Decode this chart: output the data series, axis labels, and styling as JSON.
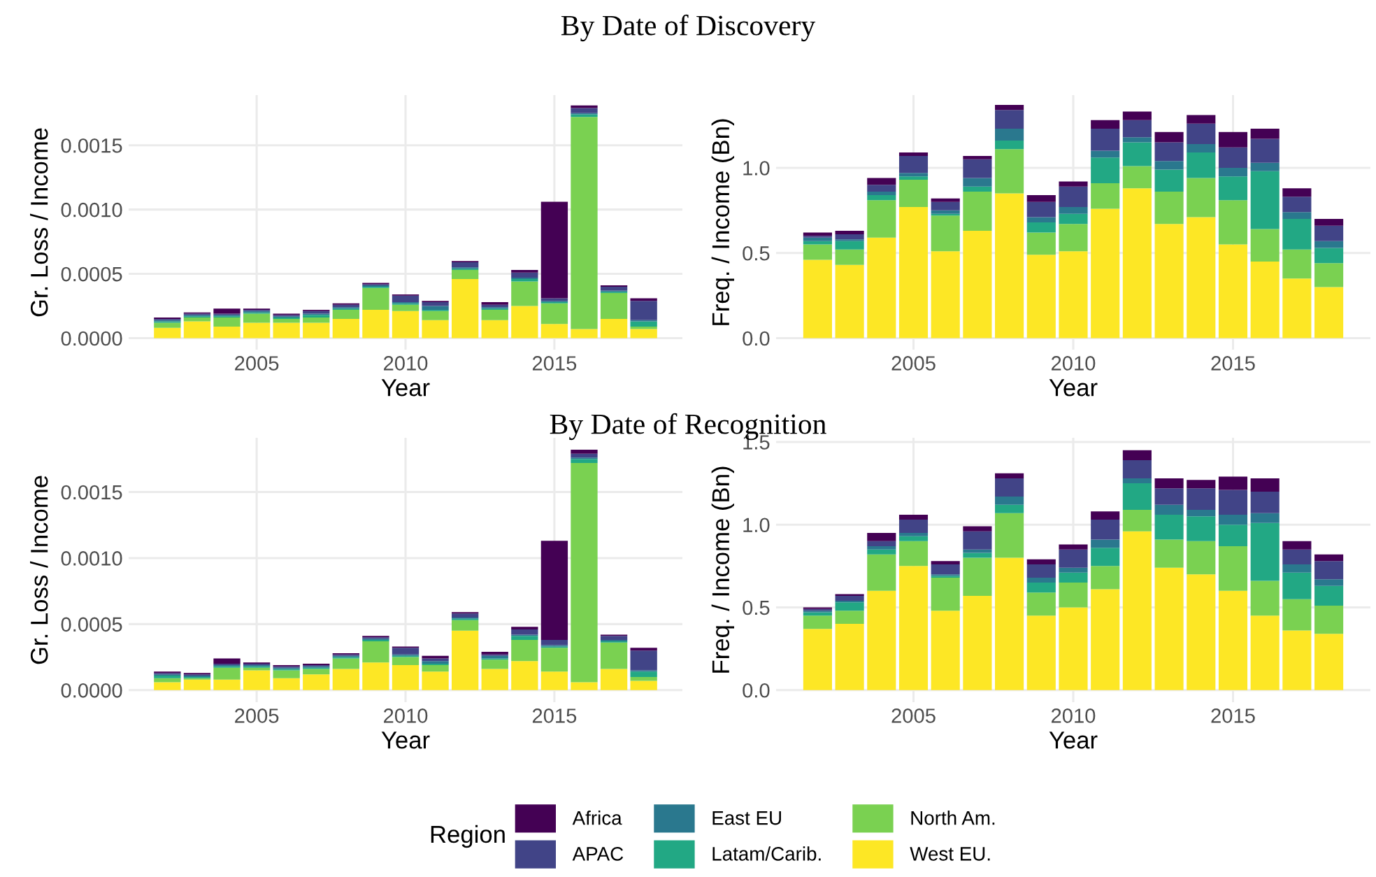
{
  "chart_data": [
    {
      "type": "bar",
      "stacked": true,
      "title": "By Date of Discovery",
      "xlabel": "Year",
      "ylabel": "Gr. Loss / Income",
      "grid": true,
      "legend": "bottom",
      "legend_title": "Region",
      "x": [
        2002,
        2003,
        2004,
        2005,
        2006,
        2007,
        2008,
        2009,
        2010,
        2011,
        2012,
        2013,
        2014,
        2015,
        2016,
        2017,
        2018
      ],
      "xlim": [
        2000.7,
        2019.3
      ],
      "xticks": [
        2005,
        2010,
        2015
      ],
      "ylim": [
        -9e-05,
        0.00189
      ],
      "yticks": [
        {
          "value": 0,
          "label": "0.0000"
        },
        {
          "value": 0.0005,
          "label": "0.0005"
        },
        {
          "value": 0.001,
          "label": "0.0010"
        },
        {
          "value": 0.0015,
          "label": "0.0015"
        }
      ],
      "series": [
        {
          "name": "West EU.",
          "color": "#fde725",
          "values": [
            8e-05,
            0.00013,
            9e-05,
            0.00012,
            0.00012,
            0.00012,
            0.00015,
            0.00022,
            0.00021,
            0.00014,
            0.00046,
            0.00014,
            0.00025,
            0.00011,
            7e-05,
            0.00015,
            7e-05
          ]
        },
        {
          "name": "North Am.",
          "color": "#7ad151",
          "values": [
            4e-05,
            3e-05,
            7e-05,
            7e-05,
            3e-05,
            4e-05,
            7e-05,
            0.00017,
            5e-05,
            7e-05,
            7e-05,
            8e-05,
            0.00019,
            0.00016,
            0.00165,
            0.0002,
            2e-05
          ]
        },
        {
          "name": "Latam/Carib.",
          "color": "#22a884",
          "values": [
            1e-05,
            1e-05,
            1e-05,
            1e-05,
            1e-05,
            2e-05,
            1e-05,
            1e-05,
            1e-05,
            1e-05,
            1e-05,
            1e-05,
            2e-05,
            1e-05,
            2e-05,
            1e-05,
            4e-05
          ]
        },
        {
          "name": "East EU",
          "color": "#2a788e",
          "values": [
            1e-05,
            1e-05,
            1e-05,
            1e-05,
            1e-05,
            1e-05,
            1e-05,
            1e-05,
            1e-05,
            3e-05,
            1e-05,
            1e-05,
            1e-05,
            1e-05,
            1e-05,
            1e-05,
            1e-05
          ]
        },
        {
          "name": "APAC",
          "color": "#414487",
          "values": [
            1e-05,
            1e-05,
            1e-05,
            1e-05,
            1e-05,
            2e-05,
            2e-05,
            1e-05,
            5e-05,
            3e-05,
            4e-05,
            2e-05,
            4e-05,
            2e-05,
            4e-05,
            3e-05,
            0.00015
          ]
        },
        {
          "name": "Africa",
          "color": "#440154",
          "values": [
            1e-05,
            1e-05,
            4e-05,
            1e-05,
            1e-05,
            1e-05,
            1e-05,
            1e-05,
            1e-05,
            1e-05,
            1e-05,
            2e-05,
            2e-05,
            0.00075,
            2e-05,
            1e-05,
            2e-05
          ]
        }
      ]
    },
    {
      "type": "bar",
      "stacked": true,
      "xlabel": "Year",
      "ylabel": "Freq. / Income (Bn)",
      "grid": true,
      "x": [
        2002,
        2003,
        2004,
        2005,
        2006,
        2007,
        2008,
        2009,
        2010,
        2011,
        2012,
        2013,
        2014,
        2015,
        2016,
        2017,
        2018
      ],
      "xlim": [
        2000.7,
        2019.3
      ],
      "xticks": [
        2005,
        2010,
        2015
      ],
      "ylim": [
        -0.068,
        1.427
      ],
      "yticks": [
        {
          "value": 0,
          "label": "0.0"
        },
        {
          "value": 0.5,
          "label": "0.5"
        },
        {
          "value": 1,
          "label": "1.0"
        }
      ],
      "series": [
        {
          "color": "#fde725",
          "values": [
            0.46,
            0.43,
            0.59,
            0.77,
            0.51,
            0.63,
            0.85,
            0.49,
            0.51,
            0.76,
            0.88,
            0.67,
            0.71,
            0.55,
            0.45,
            0.35,
            0.3
          ]
        },
        {
          "color": "#7ad151",
          "values": [
            0.09,
            0.09,
            0.22,
            0.16,
            0.21,
            0.23,
            0.26,
            0.13,
            0.16,
            0.15,
            0.13,
            0.19,
            0.23,
            0.26,
            0.19,
            0.17,
            0.14
          ]
        },
        {
          "color": "#22a884",
          "values": [
            0.02,
            0.05,
            0.03,
            0.02,
            0.01,
            0.03,
            0.05,
            0.06,
            0.06,
            0.15,
            0.14,
            0.13,
            0.15,
            0.14,
            0.34,
            0.18,
            0.09
          ]
        },
        {
          "color": "#2a788e",
          "values": [
            0.02,
            0.01,
            0.02,
            0.02,
            0.02,
            0.05,
            0.07,
            0.03,
            0.04,
            0.04,
            0.03,
            0.05,
            0.05,
            0.05,
            0.05,
            0.04,
            0.04
          ]
        },
        {
          "color": "#414487",
          "values": [
            0.01,
            0.03,
            0.04,
            0.1,
            0.05,
            0.11,
            0.11,
            0.09,
            0.12,
            0.13,
            0.1,
            0.11,
            0.12,
            0.12,
            0.14,
            0.09,
            0.09
          ]
        },
        {
          "color": "#440154",
          "values": [
            0.02,
            0.02,
            0.04,
            0.02,
            0.02,
            0.02,
            0.03,
            0.04,
            0.03,
            0.05,
            0.05,
            0.06,
            0.05,
            0.09,
            0.06,
            0.05,
            0.04
          ]
        }
      ]
    },
    {
      "type": "bar",
      "stacked": true,
      "title": "By Date of Recognition",
      "xlabel": "Year",
      "ylabel": "Gr. Loss / Income",
      "grid": true,
      "x": [
        2002,
        2003,
        2004,
        2005,
        2006,
        2007,
        2008,
        2009,
        2010,
        2011,
        2012,
        2013,
        2014,
        2015,
        2016,
        2017,
        2018
      ],
      "xlim": [
        2000.7,
        2019.3
      ],
      "xticks": [
        2005,
        2010,
        2015
      ],
      "ylim": [
        -9.1e-05,
        0.00191
      ],
      "yticks": [
        {
          "value": 0,
          "label": "0.0000"
        },
        {
          "value": 0.0005,
          "label": "0.0005"
        },
        {
          "value": 0.001,
          "label": "0.0010"
        },
        {
          "value": 0.0015,
          "label": "0.0015"
        }
      ],
      "series": [
        {
          "color": "#fde725",
          "values": [
            6e-05,
            8e-05,
            8e-05,
            0.00015,
            9e-05,
            0.00012,
            0.00016,
            0.00021,
            0.00019,
            0.00014,
            0.00045,
            0.00016,
            0.00022,
            0.00014,
            6e-05,
            0.00016,
            7e-05
          ]
        },
        {
          "color": "#7ad151",
          "values": [
            3e-05,
            1e-05,
            9e-05,
            2e-05,
            6e-05,
            4e-05,
            8e-05,
            0.00016,
            6e-05,
            5e-05,
            8e-05,
            7e-05,
            0.00016,
            0.00018,
            0.00166,
            0.0002,
            3e-05
          ]
        },
        {
          "color": "#22a884",
          "values": [
            2e-05,
            1e-05,
            1e-05,
            1e-05,
            1e-05,
            1e-05,
            1e-05,
            1e-05,
            1e-05,
            1e-05,
            1e-05,
            1e-05,
            3e-05,
            1e-05,
            3e-05,
            1e-05,
            4e-05
          ]
        },
        {
          "color": "#2a788e",
          "values": [
            1e-05,
            1e-05,
            1e-05,
            1e-05,
            1e-05,
            1e-05,
            1e-05,
            1e-05,
            1e-05,
            2e-05,
            1e-05,
            2e-05,
            1e-05,
            1e-05,
            1e-05,
            1e-05,
            1e-05
          ]
        },
        {
          "color": "#414487",
          "values": [
            1e-05,
            1e-05,
            1e-05,
            1e-05,
            1e-05,
            1e-05,
            1e-05,
            1e-05,
            5e-05,
            2e-05,
            3e-05,
            1e-05,
            4e-05,
            4e-05,
            3e-05,
            3e-05,
            0.00015
          ]
        },
        {
          "color": "#440154",
          "values": [
            1e-05,
            1e-05,
            4e-05,
            1e-05,
            1e-05,
            1e-05,
            1e-05,
            1e-05,
            1e-05,
            2e-05,
            1e-05,
            2e-05,
            2e-05,
            0.00075,
            3e-05,
            1e-05,
            2e-05
          ]
        }
      ]
    },
    {
      "type": "bar",
      "stacked": true,
      "xlabel": "Year",
      "ylabel": "Freq. / Income (Bn)",
      "grid": true,
      "x": [
        2002,
        2003,
        2004,
        2005,
        2006,
        2007,
        2008,
        2009,
        2010,
        2011,
        2012,
        2013,
        2014,
        2015,
        2016,
        2017,
        2018
      ],
      "xlim": [
        2000.7,
        2019.3
      ],
      "xticks": [
        2005,
        2010,
        2015
      ],
      "ylim": [
        -0.073,
        1.525
      ],
      "yticks": [
        {
          "value": 0,
          "label": "0.0"
        },
        {
          "value": 0.5,
          "label": "0.5"
        },
        {
          "value": 1,
          "label": "1.0"
        },
        {
          "value": 1.5,
          "label": "1.5"
        }
      ],
      "series": [
        {
          "color": "#fde725",
          "values": [
            0.37,
            0.4,
            0.6,
            0.75,
            0.48,
            0.57,
            0.8,
            0.45,
            0.5,
            0.61,
            0.96,
            0.74,
            0.7,
            0.6,
            0.45,
            0.36,
            0.34
          ]
        },
        {
          "color": "#7ad151",
          "values": [
            0.08,
            0.08,
            0.22,
            0.15,
            0.2,
            0.23,
            0.27,
            0.14,
            0.15,
            0.14,
            0.13,
            0.17,
            0.2,
            0.27,
            0.21,
            0.19,
            0.17
          ]
        },
        {
          "color": "#22a884",
          "values": [
            0.02,
            0.05,
            0.03,
            0.03,
            0.01,
            0.03,
            0.05,
            0.06,
            0.06,
            0.11,
            0.16,
            0.15,
            0.15,
            0.13,
            0.35,
            0.16,
            0.12
          ]
        },
        {
          "color": "#2a788e",
          "values": [
            0.01,
            0.01,
            0.02,
            0.02,
            0.01,
            0.02,
            0.05,
            0.03,
            0.03,
            0.05,
            0.03,
            0.06,
            0.04,
            0.06,
            0.06,
            0.05,
            0.04
          ]
        },
        {
          "color": "#414487",
          "values": [
            0.01,
            0.03,
            0.03,
            0.08,
            0.06,
            0.11,
            0.11,
            0.08,
            0.11,
            0.12,
            0.11,
            0.1,
            0.13,
            0.15,
            0.13,
            0.09,
            0.11
          ]
        },
        {
          "color": "#440154",
          "values": [
            0.01,
            0.01,
            0.05,
            0.03,
            0.02,
            0.03,
            0.03,
            0.03,
            0.03,
            0.05,
            0.06,
            0.06,
            0.05,
            0.08,
            0.08,
            0.05,
            0.04
          ]
        }
      ]
    }
  ]
}
